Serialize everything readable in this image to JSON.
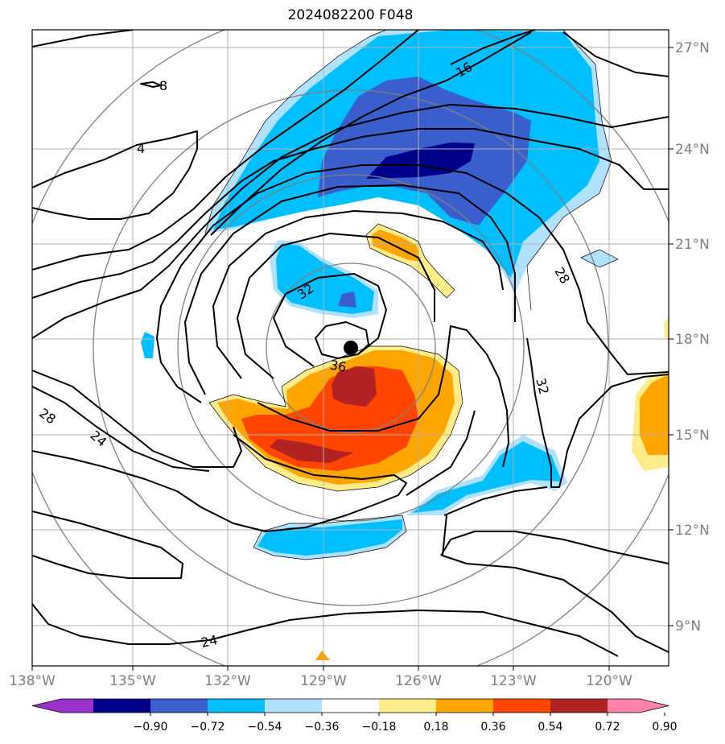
{
  "title": "2024082200 F048",
  "lon_labels": [
    "138°W",
    "135°W",
    "132°W",
    "129°W",
    "126°W",
    "123°W",
    "120°W"
  ],
  "lat_labels": [
    "27°N",
    "24°N",
    "21°N",
    "18°N",
    "15°N",
    "12°N",
    "9°N"
  ],
  "contour_labels": [
    "8",
    "4",
    "16",
    "28",
    "32",
    "36",
    "32",
    "28",
    "24",
    "24"
  ],
  "colorbar": {
    "ticks": [
      "−0.90",
      "−0.72",
      "−0.54",
      "−0.36",
      "−0.18",
      "0.18",
      "0.36",
      "0.54",
      "0.72",
      "0.90"
    ],
    "colors": [
      "#9932cc",
      "#00008b",
      "#3a5fcd",
      "#00bfff",
      "#b0e2ff",
      "#ffffff",
      "#ffec8b",
      "#ffa500",
      "#ff4500",
      "#b22222",
      "#ff82ab"
    ]
  },
  "storm_center": {
    "lon": -128.1,
    "lat": 17.7
  }
}
